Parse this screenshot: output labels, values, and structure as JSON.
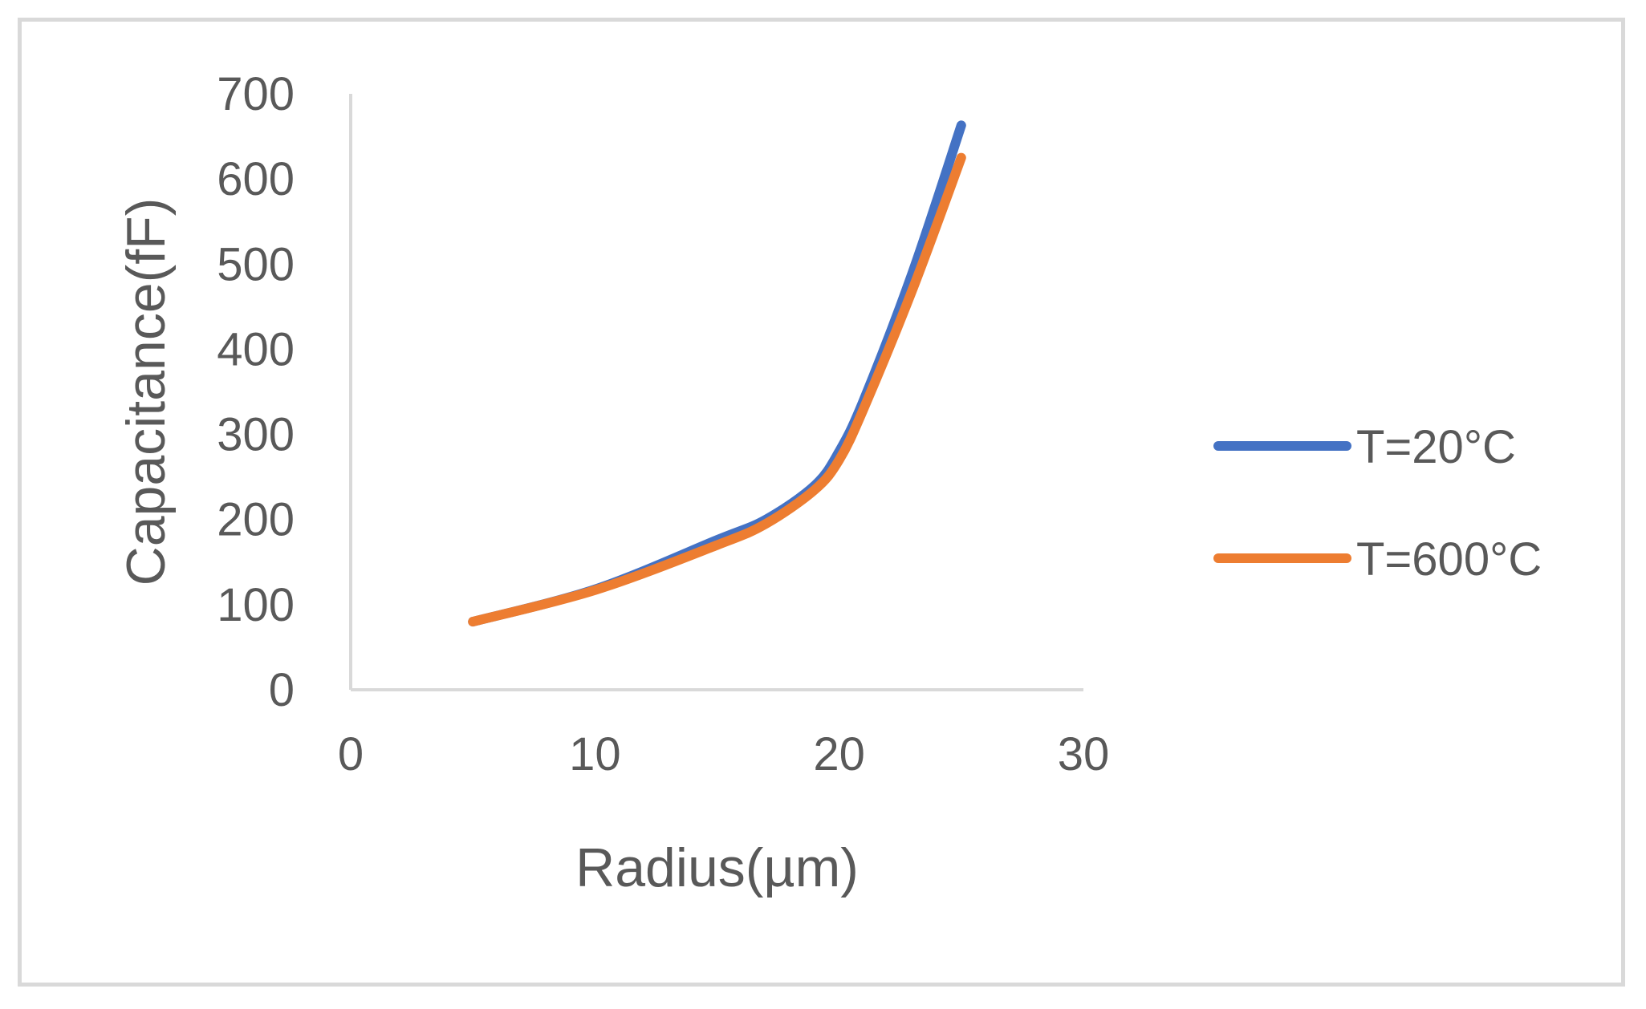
{
  "chart_data": {
    "type": "line",
    "title": "",
    "xlabel": "Radius(µm)",
    "ylabel": "Capacitance(fF)",
    "xlim": [
      0,
      30
    ],
    "ylim": [
      0,
      700
    ],
    "xticks": [
      "0",
      "10",
      "20",
      "30"
    ],
    "yticks": [
      "0",
      "100",
      "200",
      "300",
      "400",
      "500",
      "600",
      "700"
    ],
    "grid": false,
    "legend_position": "right",
    "x": [
      5,
      10,
      15,
      17,
      19,
      20,
      21,
      23,
      25
    ],
    "series": [
      {
        "name": "T=20°C",
        "color": "#4472c4",
        "values": [
          80,
          118,
          176,
          200,
          240,
          280,
          340,
          490,
          663
        ]
      },
      {
        "name": "T=600°C",
        "color": "#ed7d31",
        "values": [
          80,
          117,
          170,
          195,
          235,
          270,
          330,
          470,
          625
        ]
      }
    ]
  }
}
